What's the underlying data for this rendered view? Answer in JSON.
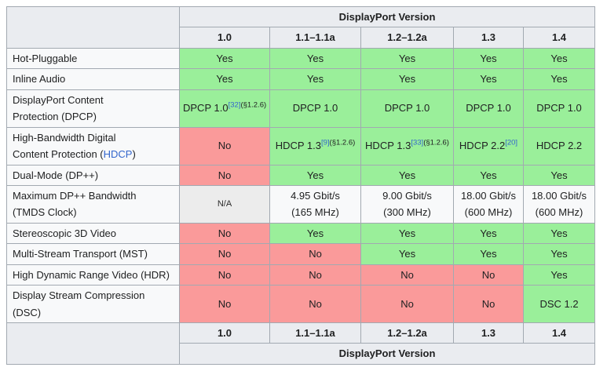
{
  "colors": {
    "yes_bg": "#9aef9a",
    "no_bg": "#fa9a9a",
    "na_bg": "#ececec",
    "header_bg": "#eaecf0",
    "label_bg": "#f8f9fa",
    "plain_bg": "#f8f9fa",
    "border": "#a2a9b1",
    "link": "#3366cc",
    "text": "#202122",
    "na_text": "#2c2c2c"
  },
  "table": {
    "header_title": "DisplayPort Version",
    "footer_title": "DisplayPort Version",
    "version_headers": [
      "1.0",
      "1.1–1.1a",
      "1.2–1.2a",
      "1.3",
      "1.4"
    ],
    "rows": [
      {
        "label": [
          {
            "t": "text",
            "v": "Hot-Pluggable"
          }
        ],
        "cells": [
          {
            "type": "yes",
            "parts": [
              {
                "t": "text",
                "v": "Yes"
              }
            ]
          },
          {
            "type": "yes",
            "parts": [
              {
                "t": "text",
                "v": "Yes"
              }
            ]
          },
          {
            "type": "yes",
            "parts": [
              {
                "t": "text",
                "v": "Yes"
              }
            ]
          },
          {
            "type": "yes",
            "parts": [
              {
                "t": "text",
                "v": "Yes"
              }
            ]
          },
          {
            "type": "yes",
            "parts": [
              {
                "t": "text",
                "v": "Yes"
              }
            ]
          }
        ]
      },
      {
        "label": [
          {
            "t": "text",
            "v": "Inline Audio"
          }
        ],
        "cells": [
          {
            "type": "yes",
            "parts": [
              {
                "t": "text",
                "v": "Yes"
              }
            ]
          },
          {
            "type": "yes",
            "parts": [
              {
                "t": "text",
                "v": "Yes"
              }
            ]
          },
          {
            "type": "yes",
            "parts": [
              {
                "t": "text",
                "v": "Yes"
              }
            ]
          },
          {
            "type": "yes",
            "parts": [
              {
                "t": "text",
                "v": "Yes"
              }
            ]
          },
          {
            "type": "yes",
            "parts": [
              {
                "t": "text",
                "v": "Yes"
              }
            ]
          }
        ]
      },
      {
        "label": [
          {
            "t": "text",
            "v": "DisplayPort Content"
          },
          {
            "t": "br"
          },
          {
            "t": "text",
            "v": "Protection (DPCP)"
          }
        ],
        "cells": [
          {
            "type": "yes",
            "parts": [
              {
                "t": "text",
                "v": "DPCP 1.0"
              },
              {
                "t": "ref",
                "v": "[32]"
              },
              {
                "t": "note",
                "v": "(§1.2.6)"
              }
            ]
          },
          {
            "type": "yes",
            "parts": [
              {
                "t": "text",
                "v": "DPCP 1.0"
              }
            ]
          },
          {
            "type": "yes",
            "parts": [
              {
                "t": "text",
                "v": "DPCP 1.0"
              }
            ]
          },
          {
            "type": "yes",
            "parts": [
              {
                "t": "text",
                "v": "DPCP 1.0"
              }
            ]
          },
          {
            "type": "yes",
            "parts": [
              {
                "t": "text",
                "v": "DPCP 1.0"
              }
            ]
          }
        ]
      },
      {
        "label": [
          {
            "t": "text",
            "v": "High-Bandwidth Digital"
          },
          {
            "t": "br"
          },
          {
            "t": "text",
            "v": "Content Protection ("
          },
          {
            "t": "link",
            "v": "HDCP"
          },
          {
            "t": "text",
            "v": ")"
          }
        ],
        "cells": [
          {
            "type": "no",
            "parts": [
              {
                "t": "text",
                "v": "No"
              }
            ]
          },
          {
            "type": "yes",
            "parts": [
              {
                "t": "text",
                "v": "HDCP 1.3"
              },
              {
                "t": "ref",
                "v": "[9]"
              },
              {
                "t": "note",
                "v": "(§1.2.6)"
              }
            ]
          },
          {
            "type": "yes",
            "parts": [
              {
                "t": "text",
                "v": "HDCP 1.3"
              },
              {
                "t": "ref",
                "v": "[33]"
              },
              {
                "t": "note",
                "v": "(§1.2.6)"
              }
            ]
          },
          {
            "type": "yes",
            "parts": [
              {
                "t": "text",
                "v": "HDCP 2.2"
              },
              {
                "t": "ref",
                "v": "[20]"
              }
            ]
          },
          {
            "type": "yes",
            "parts": [
              {
                "t": "text",
                "v": "HDCP 2.2"
              }
            ]
          }
        ]
      },
      {
        "label": [
          {
            "t": "text",
            "v": "Dual-Mode (DP++)"
          }
        ],
        "cells": [
          {
            "type": "no",
            "parts": [
              {
                "t": "text",
                "v": "No"
              }
            ]
          },
          {
            "type": "yes",
            "parts": [
              {
                "t": "text",
                "v": "Yes"
              }
            ]
          },
          {
            "type": "yes",
            "parts": [
              {
                "t": "text",
                "v": "Yes"
              }
            ]
          },
          {
            "type": "yes",
            "parts": [
              {
                "t": "text",
                "v": "Yes"
              }
            ]
          },
          {
            "type": "yes",
            "parts": [
              {
                "t": "text",
                "v": "Yes"
              }
            ]
          }
        ]
      },
      {
        "label": [
          {
            "t": "text",
            "v": "Maximum DP++ Bandwidth"
          },
          {
            "t": "br"
          },
          {
            "t": "text",
            "v": "(TMDS Clock)"
          }
        ],
        "cells": [
          {
            "type": "na",
            "parts": [
              {
                "t": "text",
                "v": "N/A"
              }
            ]
          },
          {
            "type": "plain",
            "parts": [
              {
                "t": "text",
                "v": "4.95 Gbit/s"
              },
              {
                "t": "br"
              },
              {
                "t": "text",
                "v": "(165 MHz)"
              }
            ]
          },
          {
            "type": "plain",
            "parts": [
              {
                "t": "text",
                "v": "9.00 Gbit/s"
              },
              {
                "t": "br"
              },
              {
                "t": "text",
                "v": "(300 MHz)"
              }
            ]
          },
          {
            "type": "plain",
            "parts": [
              {
                "t": "text",
                "v": "18.00 Gbit/s"
              },
              {
                "t": "br"
              },
              {
                "t": "text",
                "v": "(600 MHz)"
              }
            ]
          },
          {
            "type": "plain",
            "parts": [
              {
                "t": "text",
                "v": "18.00 Gbit/s"
              },
              {
                "t": "br"
              },
              {
                "t": "text",
                "v": "(600 MHz)"
              }
            ]
          }
        ]
      },
      {
        "label": [
          {
            "t": "text",
            "v": "Stereoscopic 3D Video"
          }
        ],
        "cells": [
          {
            "type": "no",
            "parts": [
              {
                "t": "text",
                "v": "No"
              }
            ]
          },
          {
            "type": "yes",
            "parts": [
              {
                "t": "text",
                "v": "Yes"
              }
            ]
          },
          {
            "type": "yes",
            "parts": [
              {
                "t": "text",
                "v": "Yes"
              }
            ]
          },
          {
            "type": "yes",
            "parts": [
              {
                "t": "text",
                "v": "Yes"
              }
            ]
          },
          {
            "type": "yes",
            "parts": [
              {
                "t": "text",
                "v": "Yes"
              }
            ]
          }
        ]
      },
      {
        "label": [
          {
            "t": "text",
            "v": "Multi-Stream Transport (MST)"
          }
        ],
        "cells": [
          {
            "type": "no",
            "parts": [
              {
                "t": "text",
                "v": "No"
              }
            ]
          },
          {
            "type": "no",
            "parts": [
              {
                "t": "text",
                "v": "No"
              }
            ]
          },
          {
            "type": "yes",
            "parts": [
              {
                "t": "text",
                "v": "Yes"
              }
            ]
          },
          {
            "type": "yes",
            "parts": [
              {
                "t": "text",
                "v": "Yes"
              }
            ]
          },
          {
            "type": "yes",
            "parts": [
              {
                "t": "text",
                "v": "Yes"
              }
            ]
          }
        ]
      },
      {
        "label": [
          {
            "t": "text",
            "v": "High Dynamic Range Video (HDR)"
          }
        ],
        "cells": [
          {
            "type": "no",
            "parts": [
              {
                "t": "text",
                "v": "No"
              }
            ]
          },
          {
            "type": "no",
            "parts": [
              {
                "t": "text",
                "v": "No"
              }
            ]
          },
          {
            "type": "no",
            "parts": [
              {
                "t": "text",
                "v": "No"
              }
            ]
          },
          {
            "type": "no",
            "parts": [
              {
                "t": "text",
                "v": "No"
              }
            ]
          },
          {
            "type": "yes",
            "parts": [
              {
                "t": "text",
                "v": "Yes"
              }
            ]
          }
        ]
      },
      {
        "label": [
          {
            "t": "text",
            "v": "Display Stream Compression (DSC)"
          }
        ],
        "cells": [
          {
            "type": "no",
            "parts": [
              {
                "t": "text",
                "v": "No"
              }
            ]
          },
          {
            "type": "no",
            "parts": [
              {
                "t": "text",
                "v": "No"
              }
            ]
          },
          {
            "type": "no",
            "parts": [
              {
                "t": "text",
                "v": "No"
              }
            ]
          },
          {
            "type": "no",
            "parts": [
              {
                "t": "text",
                "v": "No"
              }
            ]
          },
          {
            "type": "yes",
            "parts": [
              {
                "t": "text",
                "v": "DSC 1.2"
              }
            ]
          }
        ]
      }
    ]
  }
}
